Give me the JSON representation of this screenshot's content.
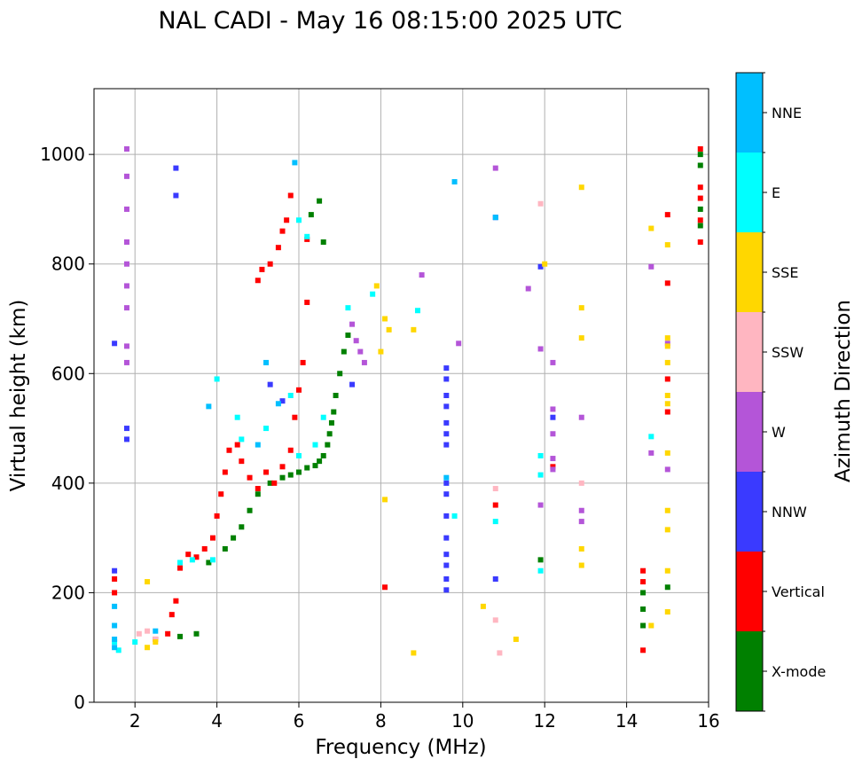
{
  "chart_data": {
    "type": "scatter",
    "title": "NAL CADI - May 16 08:15:00 2025 UTC",
    "xlabel": "Frequency (MHz)",
    "ylabel": "Virtual height (km)",
    "xlim": [
      1,
      16
    ],
    "ylim": [
      0,
      1120
    ],
    "x_ticks": [
      2,
      4,
      6,
      8,
      10,
      12,
      14,
      16
    ],
    "y_ticks": [
      0,
      200,
      400,
      600,
      800,
      1000
    ],
    "grid": true,
    "colorbar": {
      "label": "Azimuth Direction",
      "categories": [
        {
          "name": "X-mode",
          "color": "#008000"
        },
        {
          "name": "Vertical",
          "color": "#ff0000"
        },
        {
          "name": "NNW",
          "color": "#3a3aff"
        },
        {
          "name": "W",
          "color": "#b455d8"
        },
        {
          "name": "SSW",
          "color": "#ffb6c1"
        },
        {
          "name": "SSE",
          "color": "#ffd700"
        },
        {
          "name": "E",
          "color": "#00ffff"
        },
        {
          "name": "NNE",
          "color": "#00bfff"
        }
      ]
    },
    "series": [
      {
        "category": "X-mode",
        "points": [
          [
            5.6,
            410
          ],
          [
            5.8,
            415
          ],
          [
            6.0,
            420
          ],
          [
            6.2,
            428
          ],
          [
            6.4,
            432
          ],
          [
            6.5,
            440
          ],
          [
            6.6,
            450
          ],
          [
            6.7,
            470
          ],
          [
            6.75,
            490
          ],
          [
            6.8,
            510
          ],
          [
            6.85,
            530
          ],
          [
            6.9,
            560
          ],
          [
            7.0,
            600
          ],
          [
            7.1,
            640
          ],
          [
            7.2,
            670
          ],
          [
            5.3,
            400
          ],
          [
            5.0,
            380
          ],
          [
            4.8,
            350
          ],
          [
            4.6,
            320
          ],
          [
            4.4,
            300
          ],
          [
            4.2,
            280
          ],
          [
            3.8,
            255
          ],
          [
            3.5,
            125
          ],
          [
            3.1,
            120
          ],
          [
            6.3,
            890
          ],
          [
            6.5,
            915
          ],
          [
            6.6,
            840
          ],
          [
            11.9,
            260
          ],
          [
            15.0,
            210
          ],
          [
            14.4,
            200
          ],
          [
            14.4,
            170
          ],
          [
            14.4,
            140
          ],
          [
            15.8,
            1000
          ],
          [
            15.8,
            980
          ],
          [
            15.8,
            900
          ],
          [
            15.8,
            870
          ]
        ]
      },
      {
        "category": "Vertical",
        "points": [
          [
            3.1,
            245
          ],
          [
            3.3,
            270
          ],
          [
            3.5,
            265
          ],
          [
            3.7,
            280
          ],
          [
            3.9,
            300
          ],
          [
            4.0,
            340
          ],
          [
            4.1,
            380
          ],
          [
            4.2,
            420
          ],
          [
            4.3,
            460
          ],
          [
            4.5,
            470
          ],
          [
            4.6,
            440
          ],
          [
            4.8,
            410
          ],
          [
            5.0,
            390
          ],
          [
            5.2,
            420
          ],
          [
            5.4,
            400
          ],
          [
            5.6,
            430
          ],
          [
            5.8,
            460
          ],
          [
            5.9,
            520
          ],
          [
            6.0,
            570
          ],
          [
            6.1,
            620
          ],
          [
            6.2,
            730
          ],
          [
            5.0,
            770
          ],
          [
            5.1,
            790
          ],
          [
            5.3,
            800
          ],
          [
            5.5,
            830
          ],
          [
            5.6,
            860
          ],
          [
            5.7,
            880
          ],
          [
            5.8,
            925
          ],
          [
            6.2,
            845
          ],
          [
            2.5,
            115
          ],
          [
            2.8,
            125
          ],
          [
            2.9,
            160
          ],
          [
            3.0,
            185
          ],
          [
            1.5,
            225
          ],
          [
            1.5,
            200
          ],
          [
            8.1,
            210
          ],
          [
            10.8,
            360
          ],
          [
            12.2,
            430
          ],
          [
            14.4,
            240
          ],
          [
            14.4,
            220
          ],
          [
            14.4,
            95
          ],
          [
            15.0,
            890
          ],
          [
            15.0,
            765
          ],
          [
            15.0,
            590
          ],
          [
            15.0,
            530
          ],
          [
            15.8,
            1010
          ],
          [
            15.8,
            940
          ],
          [
            15.8,
            920
          ],
          [
            15.8,
            880
          ],
          [
            15.8,
            840
          ]
        ]
      },
      {
        "category": "NNW",
        "points": [
          [
            1.5,
            655
          ],
          [
            1.8,
            500
          ],
          [
            1.8,
            480
          ],
          [
            1.5,
            240
          ],
          [
            3.0,
            975
          ],
          [
            3.0,
            925
          ],
          [
            5.6,
            550
          ],
          [
            5.3,
            580
          ],
          [
            7.3,
            580
          ],
          [
            9.6,
            610
          ],
          [
            9.6,
            590
          ],
          [
            9.6,
            560
          ],
          [
            9.6,
            540
          ],
          [
            9.6,
            510
          ],
          [
            9.6,
            490
          ],
          [
            9.6,
            470
          ],
          [
            9.6,
            400
          ],
          [
            9.6,
            380
          ],
          [
            9.6,
            340
          ],
          [
            9.6,
            300
          ],
          [
            9.6,
            270
          ],
          [
            9.6,
            250
          ],
          [
            9.6,
            225
          ],
          [
            9.6,
            205
          ],
          [
            10.8,
            225
          ],
          [
            10.8,
            885
          ],
          [
            11.9,
            795
          ],
          [
            12.2,
            520
          ]
        ]
      },
      {
        "category": "W",
        "points": [
          [
            1.8,
            1010
          ],
          [
            1.8,
            960
          ],
          [
            1.8,
            900
          ],
          [
            1.8,
            840
          ],
          [
            1.8,
            800
          ],
          [
            1.8,
            760
          ],
          [
            1.8,
            720
          ],
          [
            1.8,
            650
          ],
          [
            1.8,
            620
          ],
          [
            7.4,
            660
          ],
          [
            7.5,
            640
          ],
          [
            7.6,
            620
          ],
          [
            7.3,
            690
          ],
          [
            9.0,
            780
          ],
          [
            10.8,
            975
          ],
          [
            12.2,
            620
          ],
          [
            12.2,
            535
          ],
          [
            12.2,
            490
          ],
          [
            12.2,
            445
          ],
          [
            12.2,
            425
          ],
          [
            12.9,
            520
          ],
          [
            12.9,
            350
          ],
          [
            12.9,
            330
          ],
          [
            14.6,
            795
          ],
          [
            14.6,
            455
          ],
          [
            15.0,
            655
          ],
          [
            15.0,
            425
          ],
          [
            11.9,
            360
          ],
          [
            9.9,
            655
          ],
          [
            11.9,
            645
          ],
          [
            11.6,
            755
          ]
        ]
      },
      {
        "category": "SSW",
        "points": [
          [
            2.1,
            125
          ],
          [
            2.3,
            130
          ],
          [
            2.5,
            115
          ],
          [
            10.8,
            390
          ],
          [
            10.8,
            150
          ],
          [
            10.9,
            90
          ],
          [
            11.9,
            910
          ],
          [
            12.9,
            400
          ]
        ]
      },
      {
        "category": "SSE",
        "points": [
          [
            2.3,
            100
          ],
          [
            2.5,
            110
          ],
          [
            2.3,
            220
          ],
          [
            7.9,
            760
          ],
          [
            8.0,
            640
          ],
          [
            8.1,
            700
          ],
          [
            8.2,
            680
          ],
          [
            8.1,
            370
          ],
          [
            8.8,
            680
          ],
          [
            8.8,
            90
          ],
          [
            10.5,
            175
          ],
          [
            11.3,
            115
          ],
          [
            12.0,
            800
          ],
          [
            12.9,
            940
          ],
          [
            12.9,
            720
          ],
          [
            12.9,
            665
          ],
          [
            12.9,
            280
          ],
          [
            12.9,
            250
          ],
          [
            14.6,
            865
          ],
          [
            14.6,
            140
          ],
          [
            15.0,
            835
          ],
          [
            15.0,
            665
          ],
          [
            15.0,
            650
          ],
          [
            15.0,
            620
          ],
          [
            15.0,
            560
          ],
          [
            15.0,
            545
          ],
          [
            15.0,
            455
          ],
          [
            15.0,
            350
          ],
          [
            15.0,
            315
          ],
          [
            15.0,
            240
          ],
          [
            15.0,
            165
          ]
        ]
      },
      {
        "category": "E",
        "points": [
          [
            1.5,
            110
          ],
          [
            1.6,
            95
          ],
          [
            2.0,
            110
          ],
          [
            3.1,
            255
          ],
          [
            3.4,
            260
          ],
          [
            3.9,
            260
          ],
          [
            4.0,
            590
          ],
          [
            4.5,
            520
          ],
          [
            4.6,
            480
          ],
          [
            5.2,
            500
          ],
          [
            5.8,
            560
          ],
          [
            6.0,
            450
          ],
          [
            6.4,
            470
          ],
          [
            6.6,
            520
          ],
          [
            7.2,
            720
          ],
          [
            7.8,
            745
          ],
          [
            8.9,
            715
          ],
          [
            9.8,
            340
          ],
          [
            10.8,
            330
          ],
          [
            11.9,
            450
          ],
          [
            11.9,
            415
          ],
          [
            11.9,
            240
          ],
          [
            14.6,
            485
          ],
          [
            6.0,
            880
          ],
          [
            6.2,
            850
          ]
        ]
      },
      {
        "category": "NNE",
        "points": [
          [
            1.5,
            175
          ],
          [
            1.5,
            140
          ],
          [
            1.5,
            115
          ],
          [
            1.5,
            100
          ],
          [
            2.5,
            130
          ],
          [
            3.8,
            540
          ],
          [
            5.0,
            470
          ],
          [
            5.2,
            620
          ],
          [
            5.5,
            545
          ],
          [
            5.9,
            985
          ],
          [
            9.8,
            950
          ],
          [
            9.6,
            410
          ],
          [
            10.8,
            885
          ]
        ]
      }
    ]
  }
}
